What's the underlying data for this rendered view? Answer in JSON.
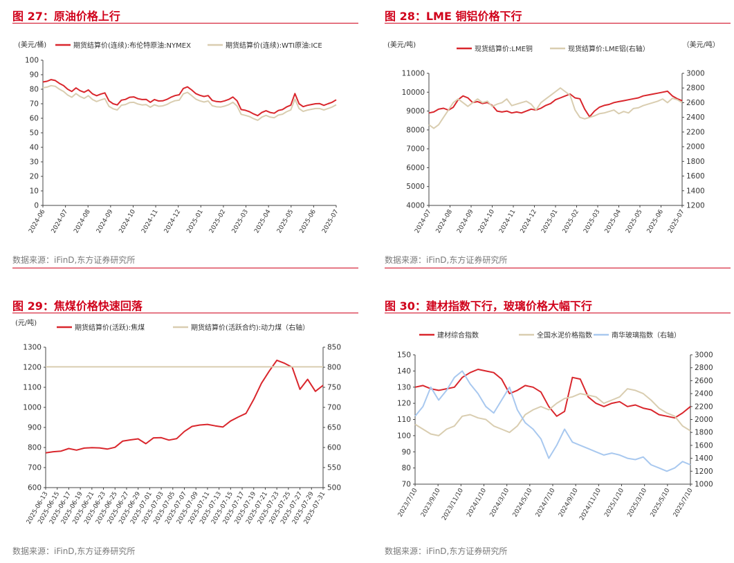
{
  "source_text": "数据来源：iFinD,东方证券研究所",
  "chart_data": [
    {
      "figure_title": "图 27：原油价格上行",
      "type": "line",
      "y_unit": "(美元/桶)",
      "y_ticks": [
        0,
        10,
        20,
        30,
        40,
        50,
        60,
        70,
        80,
        90,
        100
      ],
      "ylim": [
        0,
        100
      ],
      "x_labels": [
        "2024-06",
        "2024-07",
        "2024-08",
        "2024-09",
        "2024-10",
        "2024-11",
        "2024-12",
        "2025-01",
        "2025-02",
        "2025-03",
        "2025-04",
        "2025-05",
        "2025-06",
        "2025-07"
      ],
      "legend": "top",
      "series": [
        {
          "name": "期货结算价(连续):布伦特原油:NYMEX",
          "color": "#d9262c",
          "axis": "left",
          "values": [
            85,
            85.5,
            86.6,
            86,
            84,
            82.5,
            80,
            78.5,
            80.9,
            79,
            77.9,
            79.5,
            76.8,
            75.5,
            76.6,
            77.5,
            72,
            70,
            69.2,
            72.5,
            73,
            74.5,
            74.7,
            73.5,
            72.9,
            73,
            71,
            72.9,
            71.9,
            72,
            73,
            74.5,
            75.6,
            76.2,
            80.5,
            81.6,
            79.5,
            77,
            75.8,
            75,
            75.6,
            72.3,
            71.5,
            71.3,
            72,
            73,
            74.6,
            72,
            66,
            65.5,
            64.5,
            63,
            61.8,
            64,
            65.2,
            64,
            63.5,
            65.4,
            66,
            67.8,
            69,
            77,
            70,
            68,
            68.9,
            69.5,
            70,
            70.1,
            68.9,
            70,
            71,
            72.7
          ]
        },
        {
          "name": "期货结算价(连续):WTI原油:ICE",
          "color": "#d9cdb0",
          "axis": "left",
          "values": [
            81,
            81.5,
            82.5,
            82,
            80,
            78.5,
            76,
            74.5,
            77,
            75,
            73.7,
            75.5,
            72.9,
            71.5,
            72.6,
            73.5,
            68.2,
            66.5,
            65.7,
            69,
            69.5,
            70.8,
            71,
            69.8,
            69.2,
            69.4,
            67.6,
            69.3,
            68.3,
            68.5,
            69.5,
            71,
            72.1,
            72.5,
            76.8,
            77.8,
            75.6,
            73.2,
            72,
            71.2,
            71.9,
            68.6,
            67.9,
            67.7,
            68.4,
            69.4,
            71,
            68.4,
            62.7,
            62,
            61.2,
            59.7,
            58.6,
            60.8,
            62,
            60.8,
            60.4,
            62.2,
            62.8,
            64.5,
            65.7,
            73.2,
            66.7,
            64.7,
            65.6,
            66.2,
            66.7,
            66.7,
            65.7,
            66.7,
            67.7,
            69.3
          ]
        }
      ]
    },
    {
      "figure_title": "图 28：LME 铜铝价格下行",
      "type": "line",
      "y_unit": "(美元/吨)",
      "y2_unit": "（美元/吨）",
      "y_ticks": [
        4000,
        5000,
        6000,
        7000,
        8000,
        9000,
        10000,
        11000
      ],
      "y2_ticks": [
        1200,
        1400,
        1600,
        1800,
        2000,
        2200,
        2400,
        2600,
        2800,
        3000
      ],
      "ylim": [
        4000,
        11000
      ],
      "y2lim": [
        1200,
        3000
      ],
      "x_labels": [
        "2024-07",
        "2024-08",
        "2024-09",
        "2024-10",
        "2024-11",
        "2024-12",
        "2025-01",
        "2025-02",
        "2025-03",
        "2025-04",
        "2025-05",
        "2025-06",
        "2025-07"
      ],
      "legend": "top",
      "series": [
        {
          "name": "现货结算价:LME铜",
          "color": "#d9262c",
          "axis": "left",
          "values": [
            8900,
            8950,
            9100,
            9150,
            9050,
            9200,
            9600,
            9800,
            9700,
            9450,
            9500,
            9400,
            9450,
            9300,
            9000,
            8950,
            9000,
            8900,
            8950,
            8900,
            9000,
            9100,
            9050,
            9150,
            9300,
            9400,
            9600,
            9700,
            9800,
            9900,
            9700,
            9650,
            9100,
            8700,
            9000,
            9200,
            9300,
            9350,
            9450,
            9500,
            9550,
            9600,
            9650,
            9700,
            9800,
            9850,
            9900,
            9950,
            10000,
            10050,
            9800,
            9650,
            9550
          ]
        },
        {
          "name": "现货结算价:LME铝(右轴）",
          "color": "#d9cdb0",
          "axis": "right",
          "values": [
            2300,
            2250,
            2300,
            2400,
            2500,
            2600,
            2650,
            2600,
            2550,
            2600,
            2650,
            2600,
            2620,
            2550,
            2580,
            2600,
            2650,
            2560,
            2580,
            2600,
            2620,
            2580,
            2500,
            2600,
            2650,
            2700,
            2750,
            2800,
            2750,
            2700,
            2500,
            2400,
            2380,
            2400,
            2420,
            2450,
            2460,
            2480,
            2500,
            2450,
            2480,
            2460,
            2520,
            2530,
            2560,
            2580,
            2600,
            2620,
            2650,
            2600,
            2660,
            2640,
            2600
          ]
        }
      ]
    },
    {
      "figure_title": "图 29：焦煤价格快速回落",
      "type": "line",
      "y_unit": "(元/吨)",
      "y_ticks": [
        600,
        700,
        800,
        900,
        1000,
        1100,
        1200,
        1300
      ],
      "y2_ticks": [
        500,
        550,
        600,
        650,
        700,
        750,
        800,
        850
      ],
      "ylim": [
        600,
        1300
      ],
      "y2lim": [
        500,
        850
      ],
      "x_labels": [
        "2025-06-13",
        "2025-06-15",
        "2025-06-17",
        "2025-06-19",
        "2025-06-21",
        "2025-06-23",
        "2025-06-25",
        "2025-06-27",
        "2025-06-29",
        "2025-07-01",
        "2025-07-03",
        "2025-07-05",
        "2025-07-07",
        "2025-07-09",
        "2025-07-11",
        "2025-07-13",
        "2025-07-15",
        "2025-07-17",
        "2025-07-19",
        "2025-07-21",
        "2025-07-23",
        "2025-07-25",
        "2025-07-27",
        "2025-07-29",
        "2025-07-31"
      ],
      "legend": "top",
      "series": [
        {
          "name": "期货结算价(活跃):焦煤",
          "color": "#d9262c",
          "axis": "left",
          "values": [
            773,
            779,
            782,
            795,
            787,
            797,
            799,
            798,
            792,
            801,
            832,
            838,
            843,
            819,
            848,
            849,
            837,
            844,
            880,
            905,
            912,
            915,
            908,
            902,
            932,
            952,
            970,
            1040,
            1120,
            1180,
            1235,
            1220,
            1200,
            1090,
            1140,
            1080,
            1110
          ]
        },
        {
          "name": "期货结算价(活跃合约):动力煤（右轴）",
          "color": "#d9cdb0",
          "axis": "right",
          "values": [
            801,
            801,
            801,
            801,
            801,
            801,
            801,
            801,
            801,
            801,
            801,
            801,
            801,
            801,
            801,
            801,
            801,
            801,
            801,
            801,
            801,
            801,
            801,
            801,
            801,
            801,
            801,
            801,
            801,
            801,
            801,
            801,
            801,
            801,
            801,
            801,
            801
          ]
        }
      ]
    },
    {
      "figure_title": "图 30：建材指数下行，玻璃价格大幅下行",
      "type": "line",
      "y_ticks": [
        70,
        80,
        90,
        100,
        110,
        120,
        130,
        140,
        150
      ],
      "y2_ticks": [
        1000,
        1200,
        1400,
        1600,
        1800,
        2000,
        2200,
        2400,
        2600,
        2800,
        3000
      ],
      "ylim": [
        70,
        150
      ],
      "y2lim": [
        1000,
        3000
      ],
      "x_labels": [
        "2023/7/10",
        "2023/9/10",
        "2023/11/10",
        "2024/1/10",
        "2024/3/10",
        "2024/5/10",
        "2024/7/10",
        "2024/9/10",
        "2024/11/10",
        "2025/1/10",
        "2025/3/10",
        "2025/5/10",
        "2025/7/10"
      ],
      "legend": "top",
      "series": [
        {
          "name": "建材综合指数",
          "color": "#d9262c",
          "axis": "left",
          "values": [
            130,
            131,
            129,
            128,
            129,
            130,
            136,
            139,
            141,
            140,
            139,
            135,
            126,
            128,
            131,
            130,
            127,
            118,
            112,
            115,
            136,
            135,
            124,
            120,
            118,
            120,
            121,
            118,
            119,
            117,
            116,
            113,
            112,
            111,
            114,
            118
          ]
        },
        {
          "name": "全国水泥价格指数",
          "color": "#d9cdb0",
          "axis": "left",
          "values": [
            107,
            104,
            101,
            100,
            104,
            106,
            112,
            113,
            111,
            110,
            106,
            104,
            102,
            106,
            113,
            116,
            118,
            116,
            120,
            123,
            124,
            126,
            125,
            124,
            120,
            122,
            124,
            129,
            128,
            126,
            122,
            117,
            114,
            112,
            106,
            103
          ]
        },
        {
          "name": "南华玻璃指数（右轴）",
          "color": "#a8c8ef",
          "axis": "right",
          "values": [
            2050,
            2200,
            2500,
            2300,
            2450,
            2650,
            2750,
            2550,
            2400,
            2200,
            2100,
            2300,
            2500,
            2150,
            1950,
            1850,
            1700,
            1400,
            1600,
            1850,
            1650,
            1600,
            1550,
            1500,
            1450,
            1480,
            1450,
            1400,
            1380,
            1420,
            1300,
            1250,
            1200,
            1250,
            1350,
            1300
          ]
        }
      ]
    }
  ]
}
